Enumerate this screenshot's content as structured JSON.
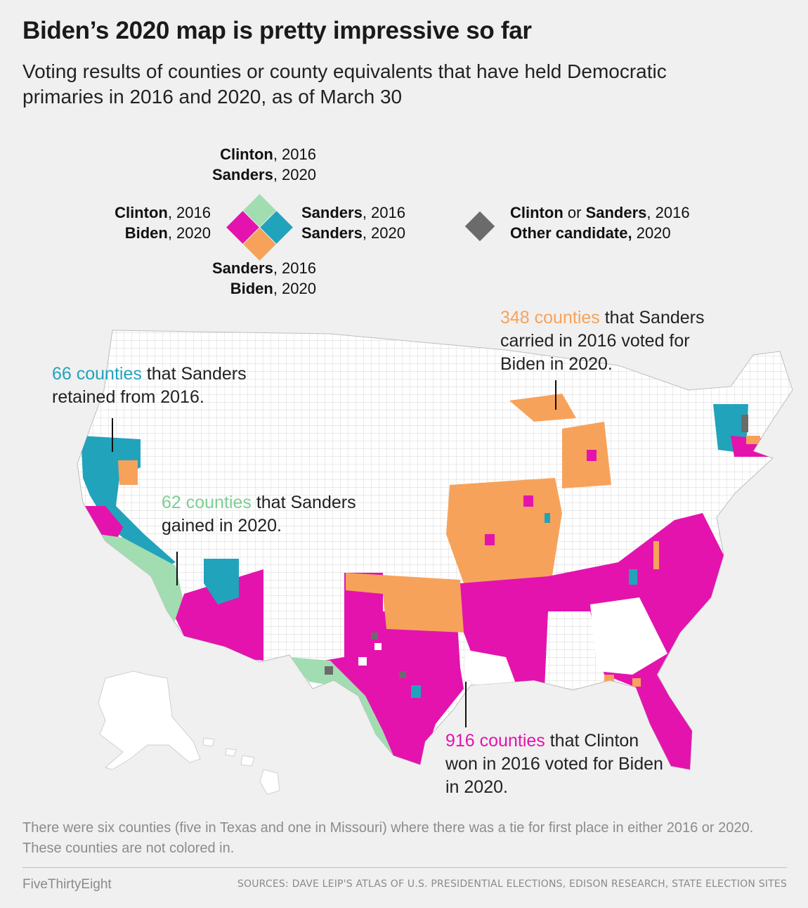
{
  "title": "Biden’s 2020 map is pretty impressive so far",
  "subtitle": "Voting results of counties or county equivalents that have held Democratic primaries in 2016 and 2020, as of March 30",
  "colors": {
    "clinton_biden": "#e413ad",
    "sanders_sanders": "#22a3bc",
    "clinton_sanders": "#a1ddb1",
    "sanders_biden": "#f7a25b",
    "other": "#6b6b6b",
    "no_data": "#ffffff",
    "background": "#f0f0f0"
  },
  "legend": {
    "top": {
      "name1": "Clinton",
      "year1": ", 2016",
      "name2": "Sanders",
      "year2": ", 2020"
    },
    "left": {
      "name1": "Clinton",
      "year1": ", 2016",
      "name2": "Biden",
      "year2": ", 2020"
    },
    "right": {
      "name1": "Sanders",
      "year1": ", 2016",
      "name2": "Sanders",
      "year2": ", 2020"
    },
    "bottom": {
      "name1": "Sanders",
      "year1": ", 2016",
      "name2": "Biden",
      "year2": ", 2020"
    },
    "other": {
      "name1": "Clinton",
      "mid": " or ",
      "name2": "Sanders",
      "year1": ", 2016",
      "name3": "Other candidate,",
      "year2": " 2020"
    }
  },
  "annotations": {
    "sanders_retained": {
      "num": "66 counties",
      "rest": " that Sanders retained from 2016."
    },
    "sanders_gained": {
      "num": "62 counties",
      "rest": " that Sanders gained in 2020."
    },
    "sanders_to_biden": {
      "num": "348 counties",
      "rest": " that Sanders carried in 2016 voted for Biden in 2020."
    },
    "clinton_to_biden": {
      "num": "916 counties",
      "rest": " that Clinton won in 2016 voted for Biden in 2020."
    }
  },
  "note": "There were six counties (five in Texas and one in Missouri) where there was a tie for first place in either 2016 or 2020. These counties are not colored in.",
  "brand": "FiveThirtyEight",
  "sources": "SOURCES: DAVE LEIP'S ATLAS OF U.S. PRESIDENTIAL ELECTIONS, EDISON RESEARCH, STATE ELECTION SITES"
}
